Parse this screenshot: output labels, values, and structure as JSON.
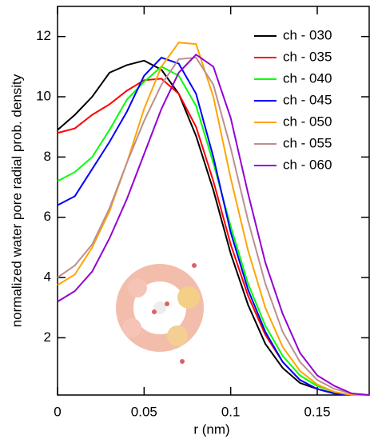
{
  "chart_data": {
    "type": "line",
    "x_label": "r (nm)",
    "y_label": "normalized water pore radial prob. density",
    "x": [
      0,
      0.01,
      0.02,
      0.03,
      0.04,
      0.05,
      0.06,
      0.07,
      0.08,
      0.09,
      0.1,
      0.11,
      0.12,
      0.13,
      0.14,
      0.15,
      0.16,
      0.17,
      0.18
    ],
    "series": [
      {
        "name": "ch - 030",
        "color": "#000000",
        "values": [
          8.9,
          9.4,
          10.0,
          10.8,
          11.05,
          11.2,
          10.9,
          10.1,
          8.7,
          6.9,
          4.8,
          3.1,
          1.8,
          1.0,
          0.5,
          0.3,
          0.15,
          0.1,
          0.1
        ]
      },
      {
        "name": "ch - 035",
        "color": "#ff0000",
        "values": [
          8.8,
          8.95,
          9.4,
          9.75,
          10.2,
          10.55,
          10.6,
          10.1,
          9.0,
          7.2,
          5.1,
          3.4,
          2.1,
          1.2,
          0.6,
          0.3,
          0.15,
          0.1,
          0.1
        ]
      },
      {
        "name": "ch - 040",
        "color": "#00ff00",
        "values": [
          7.2,
          7.5,
          8.0,
          8.9,
          9.9,
          10.5,
          11.0,
          10.7,
          9.7,
          7.8,
          5.7,
          3.8,
          2.4,
          1.4,
          0.75,
          0.4,
          0.2,
          0.1,
          0.1
        ]
      },
      {
        "name": "ch - 045",
        "color": "#0000ff",
        "values": [
          6.4,
          6.7,
          7.6,
          8.5,
          9.5,
          10.7,
          11.3,
          11.1,
          10.1,
          8.0,
          5.5,
          3.6,
          2.2,
          1.2,
          0.6,
          0.3,
          0.15,
          0.1,
          0.1
        ]
      },
      {
        "name": "ch - 050",
        "color": "#ffa500",
        "values": [
          3.75,
          4.1,
          5.0,
          6.2,
          7.8,
          9.6,
          11.0,
          11.8,
          11.75,
          10.0,
          7.3,
          4.9,
          3.0,
          1.7,
          0.9,
          0.45,
          0.2,
          0.1,
          0.1
        ]
      },
      {
        "name": "ch - 055",
        "color": "#bc8f8f",
        "values": [
          4.0,
          4.4,
          5.1,
          6.3,
          7.8,
          9.2,
          10.4,
          11.25,
          11.3,
          10.4,
          8.3,
          5.9,
          3.8,
          2.2,
          1.2,
          0.6,
          0.3,
          0.15,
          0.1
        ]
      },
      {
        "name": "ch - 060",
        "color": "#9400d3",
        "values": [
          3.2,
          3.55,
          4.2,
          5.3,
          6.6,
          8.1,
          9.6,
          10.8,
          11.4,
          11.0,
          9.3,
          6.8,
          4.5,
          2.8,
          1.5,
          0.75,
          0.4,
          0.15,
          0.1
        ]
      }
    ],
    "xlim": [
      0,
      0.18
    ],
    "ylim": [
      0.1,
      13
    ],
    "xticks": [
      0,
      0.05,
      0.1,
      0.15
    ],
    "yticks": [
      2,
      4,
      6,
      8,
      10,
      12
    ],
    "grid": false,
    "legend": "top-right"
  }
}
